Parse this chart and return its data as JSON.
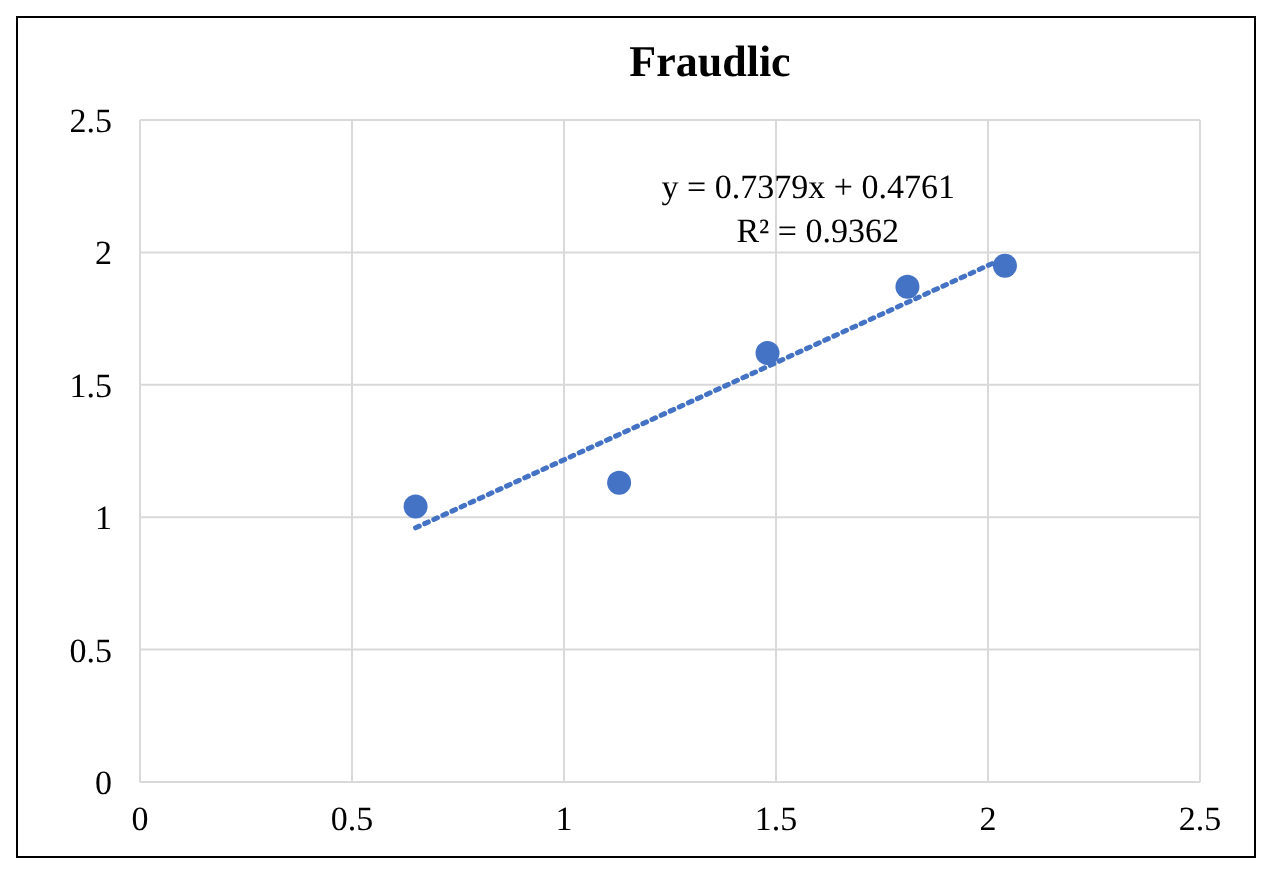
{
  "chart_data": {
    "type": "scatter",
    "title": "Fraudlic",
    "series": [
      {
        "x": [
          0.65,
          1.13,
          1.48,
          1.81,
          2.04
        ],
        "values": [
          1.04,
          1.13,
          1.62,
          1.87,
          1.95
        ],
        "color": "#4472c4",
        "marker": "circle"
      },
      {
        "type": "line",
        "x": [
          0.65,
          2.04
        ],
        "values": [
          0.96,
          1.98
        ],
        "color": "#4472c4",
        "line_style": "dotted",
        "marker": "none"
      }
    ],
    "annotations": [
      "y = 0.7379x + 0.4761",
      "R² = 0.9362"
    ],
    "xlim": [
      0,
      2.5
    ],
    "xticks": [
      0,
      0.5,
      1,
      1.5,
      2,
      2.5
    ],
    "ylim": [
      0,
      2.5
    ],
    "yticks": [
      0,
      0.5,
      1,
      1.5,
      2,
      2.5
    ],
    "grid": true
  }
}
